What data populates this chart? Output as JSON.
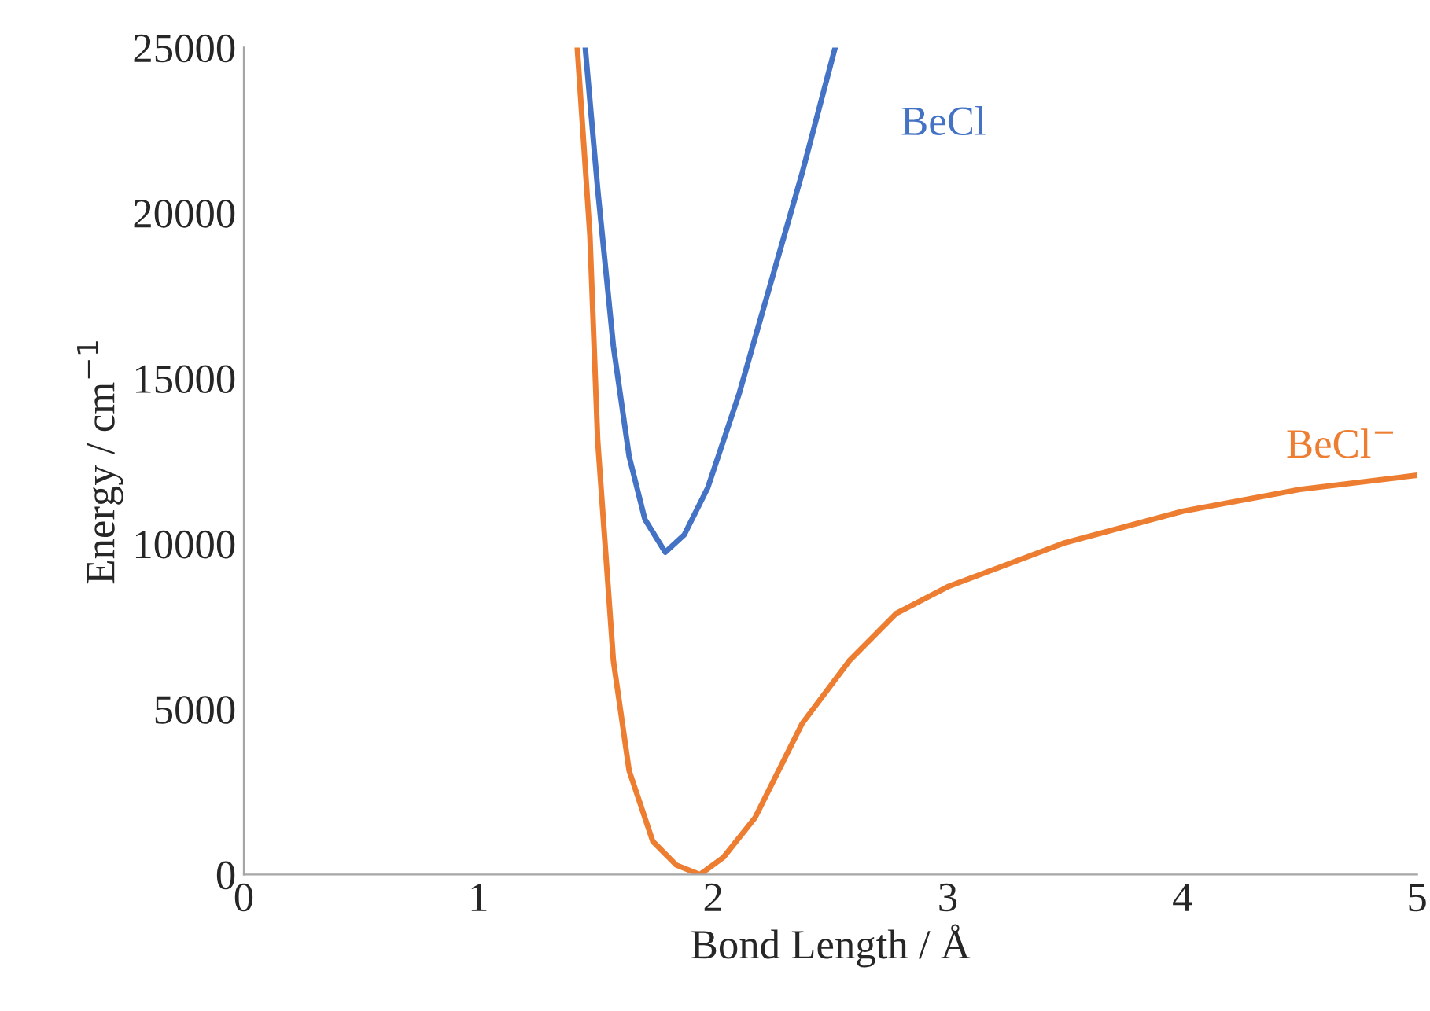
{
  "chart_data": {
    "type": "line",
    "xlabel": "Bond Length / Å",
    "ylabel": "Energy / cm$^{−1}$",
    "xlim": [
      0,
      5
    ],
    "xticks": [
      0,
      1,
      2,
      3,
      4,
      5
    ],
    "ylim": [
      0,
      25000
    ],
    "yticks": [
      0,
      5000,
      10000,
      15000,
      20000,
      25000
    ],
    "grid": false,
    "legend": false,
    "marker": "none",
    "line_style": "solid",
    "series": [
      {
        "name": "BeCl",
        "color": "#4472c4",
        "x": [
          1.455,
          1.508,
          1.575,
          1.642,
          1.709,
          1.796,
          1.877,
          1.977,
          2.111,
          2.245,
          2.379,
          2.52
        ],
        "values": [
          25000,
          20720,
          15970,
          12640,
          10740,
          9740,
          10270,
          11690,
          14540,
          17870,
          21200,
          25000
        ]
      },
      {
        "name": "BeCl$^{−}$",
        "color": "#ed7d31",
        "x": [
          1.421,
          1.475,
          1.508,
          1.575,
          1.642,
          1.743,
          1.843,
          1.944,
          2.044,
          2.178,
          2.379,
          2.58,
          2.78,
          3.0,
          3.5,
          4.0,
          4.5,
          5.0
        ],
        "values": [
          25000,
          19300,
          13120,
          6460,
          3140,
          1000,
          285,
          0,
          520,
          1710,
          4560,
          6460,
          7890,
          8700,
          10030,
          10980,
          11640,
          12070
        ]
      }
    ]
  }
}
